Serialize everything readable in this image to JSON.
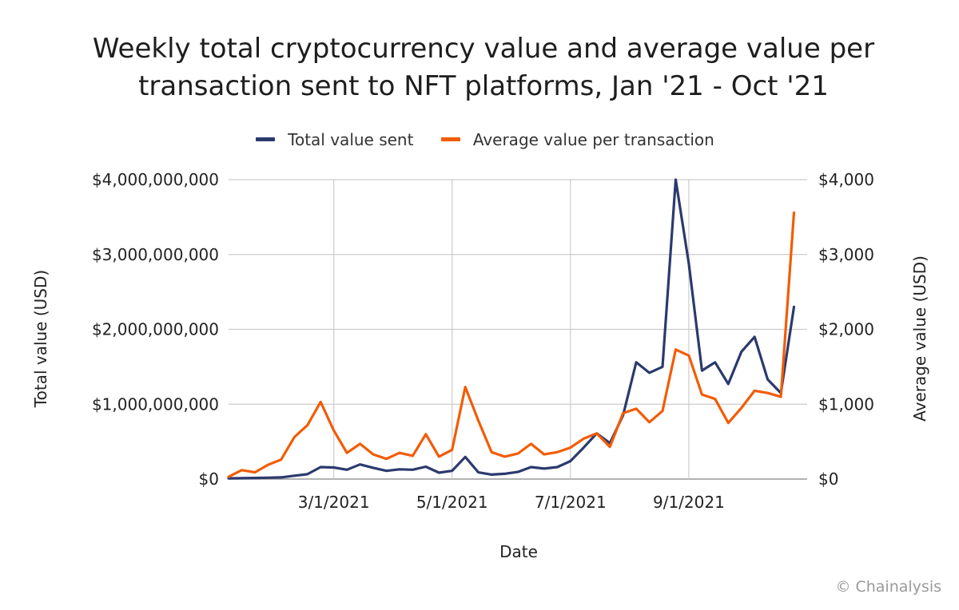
{
  "chart_data": {
    "type": "line",
    "title_lines": [
      "Weekly total cryptocurrency value and average value per",
      "transaction sent to NFT platforms, Jan '21 - Oct '21"
    ],
    "xlabel": "Date",
    "ylabel_left": "Total value (USD)",
    "ylabel_right": "Average value (USD)",
    "x_tick_labels": [
      {
        "label": "3/1/2021",
        "week_index": 8
      },
      {
        "label": "5/1/2021",
        "week_index": 17
      },
      {
        "label": "7/1/2021",
        "week_index": 26
      },
      {
        "label": "9/1/2021",
        "week_index": 35
      }
    ],
    "y_left_ticks": [
      {
        "value": 0,
        "label": "$0"
      },
      {
        "value": 1000000000,
        "label": "$1,000,000,000"
      },
      {
        "value": 2000000000,
        "label": "$2,000,000,000"
      },
      {
        "value": 3000000000,
        "label": "$3,000,000,000"
      },
      {
        "value": 4000000000,
        "label": "$4,000,000,000"
      }
    ],
    "y_right_ticks": [
      {
        "value": 0,
        "label": "$0"
      },
      {
        "value": 1000,
        "label": "$1,000"
      },
      {
        "value": 2000,
        "label": "$2,000"
      },
      {
        "value": 3000,
        "label": "$3,000"
      },
      {
        "value": 4000,
        "label": "$4,000"
      }
    ],
    "ylim_left": [
      0,
      4000000000
    ],
    "ylim_right": [
      0,
      4000
    ],
    "x_range": [
      0,
      44
    ],
    "series": [
      {
        "name": "Total value sent",
        "axis": "left",
        "color": "#2b3a6e",
        "values": [
          10000000,
          12000000,
          15000000,
          18000000,
          22000000,
          45000000,
          65000000,
          160000000,
          155000000,
          125000000,
          195000000,
          150000000,
          110000000,
          130000000,
          125000000,
          165000000,
          85000000,
          110000000,
          295000000,
          90000000,
          60000000,
          70000000,
          95000000,
          160000000,
          140000000,
          160000000,
          240000000,
          420000000,
          610000000,
          480000000,
          850000000,
          1560000000,
          1420000000,
          1500000000,
          4000000000,
          2880000000,
          1450000000,
          1560000000,
          1270000000,
          1700000000,
          1900000000,
          1330000000,
          1150000000,
          2300000000
        ]
      },
      {
        "name": "Average value per transaction",
        "axis": "right",
        "color": "#f25c05",
        "values": [
          30,
          120,
          90,
          190,
          260,
          560,
          720,
          1030,
          650,
          350,
          470,
          330,
          270,
          350,
          310,
          600,
          300,
          390,
          1230,
          780,
          360,
          300,
          340,
          470,
          330,
          360,
          420,
          540,
          610,
          430,
          880,
          940,
          760,
          910,
          1730,
          1650,
          1130,
          1070,
          750,
          950,
          1180,
          1150,
          1100,
          3560
        ]
      }
    ]
  },
  "credit": "© Chainalysis"
}
